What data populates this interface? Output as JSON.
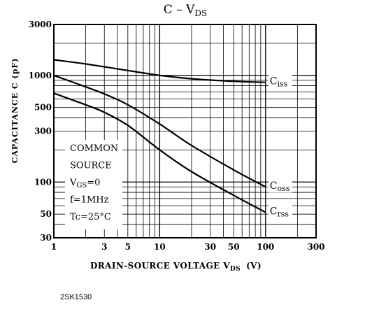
{
  "caption": "2SK1530",
  "chart_data": {
    "type": "line",
    "title": "C – V",
    "title_sub": "DS",
    "xscale": "log",
    "yscale": "log",
    "xlim": [
      1,
      300
    ],
    "ylim": [
      30,
      3000
    ],
    "xlabel": "DRAIN-SOURCE VOLTAGE  V",
    "xlabel_sub": "DS",
    "xlabel_unit": "(V)",
    "ylabel": "CAPACITANCE  C  (pF)",
    "x_ticks": [
      1,
      3,
      5,
      10,
      30,
      50,
      100,
      300
    ],
    "y_ticks": [
      30,
      50,
      100,
      300,
      500,
      1000,
      3000
    ],
    "grid": true,
    "series": [
      {
        "name": "C",
        "name_sub": "iss",
        "x": [
          1,
          2,
          5,
          10,
          20,
          50,
          100
        ],
        "y": [
          1400,
          1280,
          1110,
          1000,
          930,
          880,
          860
        ]
      },
      {
        "name": "C",
        "name_sub": "oss",
        "x": [
          1,
          2,
          3,
          5,
          10,
          20,
          50,
          100
        ],
        "y": [
          1000,
          780,
          670,
          530,
          350,
          220,
          130,
          90
        ]
      },
      {
        "name": "C",
        "name_sub": "rss",
        "x": [
          1,
          2,
          3,
          5,
          10,
          20,
          50,
          100
        ],
        "y": [
          680,
          530,
          450,
          340,
          200,
          125,
          75,
          52
        ]
      }
    ],
    "annotation": [
      {
        "text": "COMMON"
      },
      {
        "text": "SOURCE"
      },
      {
        "text": "V",
        "sub": "GS",
        "tail": "=0"
      },
      {
        "text": "f=1MHz"
      },
      {
        "text": "Tc=25°C"
      }
    ]
  }
}
